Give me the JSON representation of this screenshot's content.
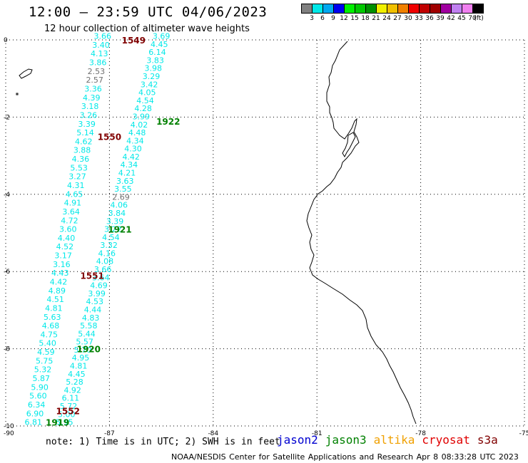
{
  "header": {
    "title": "12:00 – 23:59 UTC 04/06/2023",
    "subtitle": "12 hour collection of altimeter wave heights"
  },
  "legend": {
    "colors": [
      "#808080",
      "#00e8e8",
      "#00a8f0",
      "#0000f0",
      "#00f000",
      "#00c800",
      "#009000",
      "#f0f000",
      "#f0c000",
      "#f08000",
      "#f00000",
      "#c00000",
      "#a00000",
      "#a000a0",
      "#c080f0",
      "#f080f0",
      "#000000"
    ],
    "labels": [
      "3",
      "6",
      "9",
      "12",
      "15",
      "18",
      "21",
      "24",
      "27",
      "30",
      "33",
      "36",
      "39",
      "42",
      "45",
      "70",
      "(ft)"
    ]
  },
  "chart_data": {
    "type": "scatter",
    "title": "12:00 – 23:59 UTC 04/06/2023",
    "subtitle": "12 hour collection of altimeter wave heights",
    "units": "feet",
    "xlim": [
      -90,
      -75
    ],
    "ylim": [
      -10,
      0
    ],
    "x_ticks": [
      "-90",
      "-87",
      "-84",
      "-81",
      "-78",
      "-75"
    ],
    "y_ticks": [
      "0",
      "-2",
      "-4",
      "-6",
      "-8",
      "-10"
    ],
    "tracks": [
      {
        "id": "A",
        "color": "#00e8e8",
        "start": [
          -87.2,
          0.1
        ],
        "end": [
          -89.2,
          -9.9
        ],
        "values": [
          "3.66",
          "3.40",
          "4.13",
          "3.86",
          "2.53",
          "2.57",
          "3.36",
          "4.39",
          "3.18",
          "3.26",
          "3.39",
          "5.14",
          "4.62",
          "3.88",
          "4.36",
          "5.53",
          "3.27",
          "4.31",
          "4.65",
          "4.91",
          "3.64",
          "4.72",
          "3.60",
          "4.40",
          "4.52",
          "3.17",
          "3.16",
          "4.43",
          "4.42",
          "4.89",
          "4.51",
          "4.81",
          "5.63",
          "4.68",
          "4.75",
          "5.40",
          "4.59",
          "5.75",
          "5.32",
          "5.87",
          "5.90",
          "5.60",
          "6.34",
          "6.90",
          "6.81"
        ]
      },
      {
        "id": "B",
        "color": "#00e8e8",
        "start": [
          -85.5,
          0.1
        ],
        "end": [
          -88.3,
          -9.9
        ],
        "values": [
          "3.69",
          "4.45",
          "6.14",
          "3.83",
          "3.98",
          "3.29",
          "3.42",
          "4.05",
          "4.54",
          "4.28",
          "3.99",
          "4.02",
          "4.48",
          "4.34",
          "4.30",
          "4.42",
          "4.34",
          "4.21",
          "3.63",
          "3.55",
          "2.69",
          "4.06",
          "3.84",
          "3.39",
          "3.22",
          "4.54",
          "3.32",
          "4.16",
          "4.08",
          "3.66",
          "3.64",
          "4.69",
          "3.99",
          "4.53",
          "4.44",
          "4.83",
          "5.58",
          "5.44",
          "5.57",
          "5.70",
          "4.95",
          "4.81",
          "4.45",
          "5.28",
          "4.92",
          "6.11",
          "5.72",
          "5.00",
          "5.95"
        ]
      }
    ],
    "gray_values": [
      "2.53",
      "2.57",
      "2.69"
    ],
    "time_labels": [
      {
        "text": "1549",
        "x": -86.3,
        "y": 0.0,
        "color": "#800000"
      },
      {
        "text": "1550",
        "x": -87.0,
        "y": -2.5,
        "color": "#800000"
      },
      {
        "text": "1551",
        "x": -87.5,
        "y": -6.1,
        "color": "#800000"
      },
      {
        "text": "1552",
        "x": -88.2,
        "y": -9.6,
        "color": "#800000"
      },
      {
        "text": "1922",
        "x": -85.3,
        "y": -2.1,
        "color": "#008000"
      },
      {
        "text": "1921",
        "x": -86.7,
        "y": -4.9,
        "color": "#008000"
      },
      {
        "text": "1920",
        "x": -87.6,
        "y": -8.0,
        "color": "#008000"
      },
      {
        "text": "1919",
        "x": -88.5,
        "y": -9.9,
        "color": "#008000"
      }
    ]
  },
  "footer": {
    "note": "note: 1) Time is in UTC; 2) SWH is in feet",
    "satellites": [
      {
        "name": "jason2",
        "color": "#0000d0"
      },
      {
        "name": "jason3",
        "color": "#008000"
      },
      {
        "name": "altika",
        "color": "#f0a000"
      },
      {
        "name": "cryosat",
        "color": "#e00000"
      },
      {
        "name": "s3a",
        "color": "#800000"
      }
    ],
    "credit": "NOAA/NESDIS Center for Satellite Applications and Research   Apr  8 08:33:28 UTC 2023"
  }
}
